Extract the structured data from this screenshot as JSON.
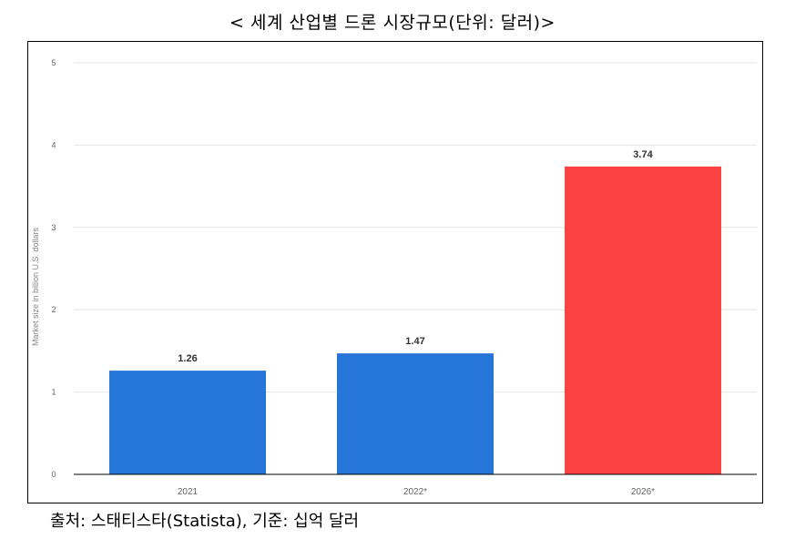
{
  "title": "< 세계 산업별 드론 시장규모(단위: 달러)>",
  "source": "출처: 스태티스타(Statista), 기준: 십억 달러",
  "colors": {
    "blue": "#2675d9",
    "red": "#fc4242",
    "grid": "#e6e6e6",
    "tick": "#666666"
  },
  "chart_data": {
    "type": "bar",
    "categories": [
      "2021",
      "2022*",
      "2026*"
    ],
    "values": [
      1.26,
      1.47,
      3.74
    ],
    "value_labels": [
      "1.26",
      "1.47",
      "3.74"
    ],
    "bar_colors": [
      "#2675d9",
      "#2675d9",
      "#fc4242"
    ],
    "ylabel": "Market size in billion U.S. dollars",
    "xlabel": "",
    "ylim": [
      0,
      5
    ],
    "yticks": [
      0,
      1,
      2,
      3,
      4,
      5
    ],
    "grid": true
  }
}
